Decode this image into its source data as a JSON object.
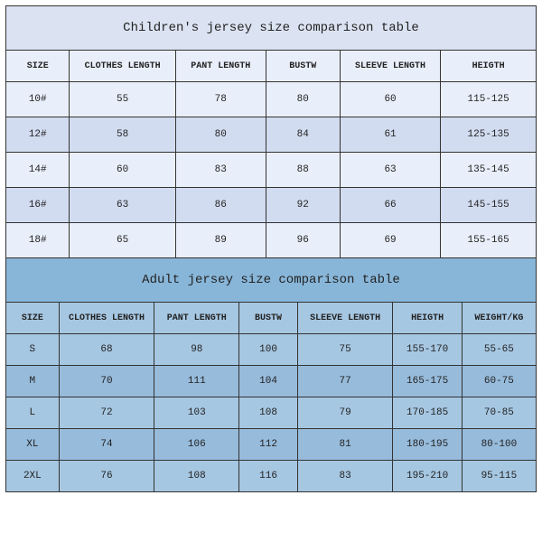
{
  "children": {
    "title": "Children's jersey size comparison table",
    "title_bg": "#dbe3f2",
    "header_bg": "#e9effa",
    "row_bg": "#e9effa",
    "alt_row_bg": "#d2dcf0",
    "columns": [
      "SIZE",
      "CLOTHES LENGTH",
      "PANT LENGTH",
      "BUSTW",
      "SLEEVE LENGTH",
      "HEIGTH"
    ],
    "col_widths": [
      "12%",
      "20%",
      "17%",
      "14%",
      "19%",
      "18%"
    ],
    "rows": [
      [
        "10#",
        "55",
        "78",
        "80",
        "60",
        "115-125"
      ],
      [
        "12#",
        "58",
        "80",
        "84",
        "61",
        "125-135"
      ],
      [
        "14#",
        "60",
        "83",
        "88",
        "63",
        "135-145"
      ],
      [
        "16#",
        "63",
        "86",
        "92",
        "66",
        "145-155"
      ],
      [
        "18#",
        "65",
        "89",
        "96",
        "69",
        "155-165"
      ]
    ]
  },
  "adult": {
    "title": "Adult jersey size comparison table",
    "title_bg": "#88b6d9",
    "header_bg": "#a6c7e2",
    "row_bg": "#a6c7e2",
    "alt_row_bg": "#97bbdb",
    "columns": [
      "SIZE",
      "CLOTHES LENGTH",
      "PANT LENGTH",
      "BUSTW",
      "SLEEVE LENGTH",
      "HEIGTH",
      "WEIGHT/KG"
    ],
    "col_widths": [
      "10%",
      "18%",
      "16%",
      "11%",
      "18%",
      "13%",
      "14%"
    ],
    "rows": [
      [
        "S",
        "68",
        "98",
        "100",
        "75",
        "155-170",
        "55-65"
      ],
      [
        "M",
        "70",
        "111",
        "104",
        "77",
        "165-175",
        "60-75"
      ],
      [
        "L",
        "72",
        "103",
        "108",
        "79",
        "170-185",
        "70-85"
      ],
      [
        "XL",
        "74",
        "106",
        "112",
        "81",
        "180-195",
        "80-100"
      ],
      [
        "2XL",
        "76",
        "108",
        "116",
        "83",
        "195-210",
        "95-115"
      ]
    ]
  },
  "border_color": "#333333",
  "text_color": "#222222"
}
